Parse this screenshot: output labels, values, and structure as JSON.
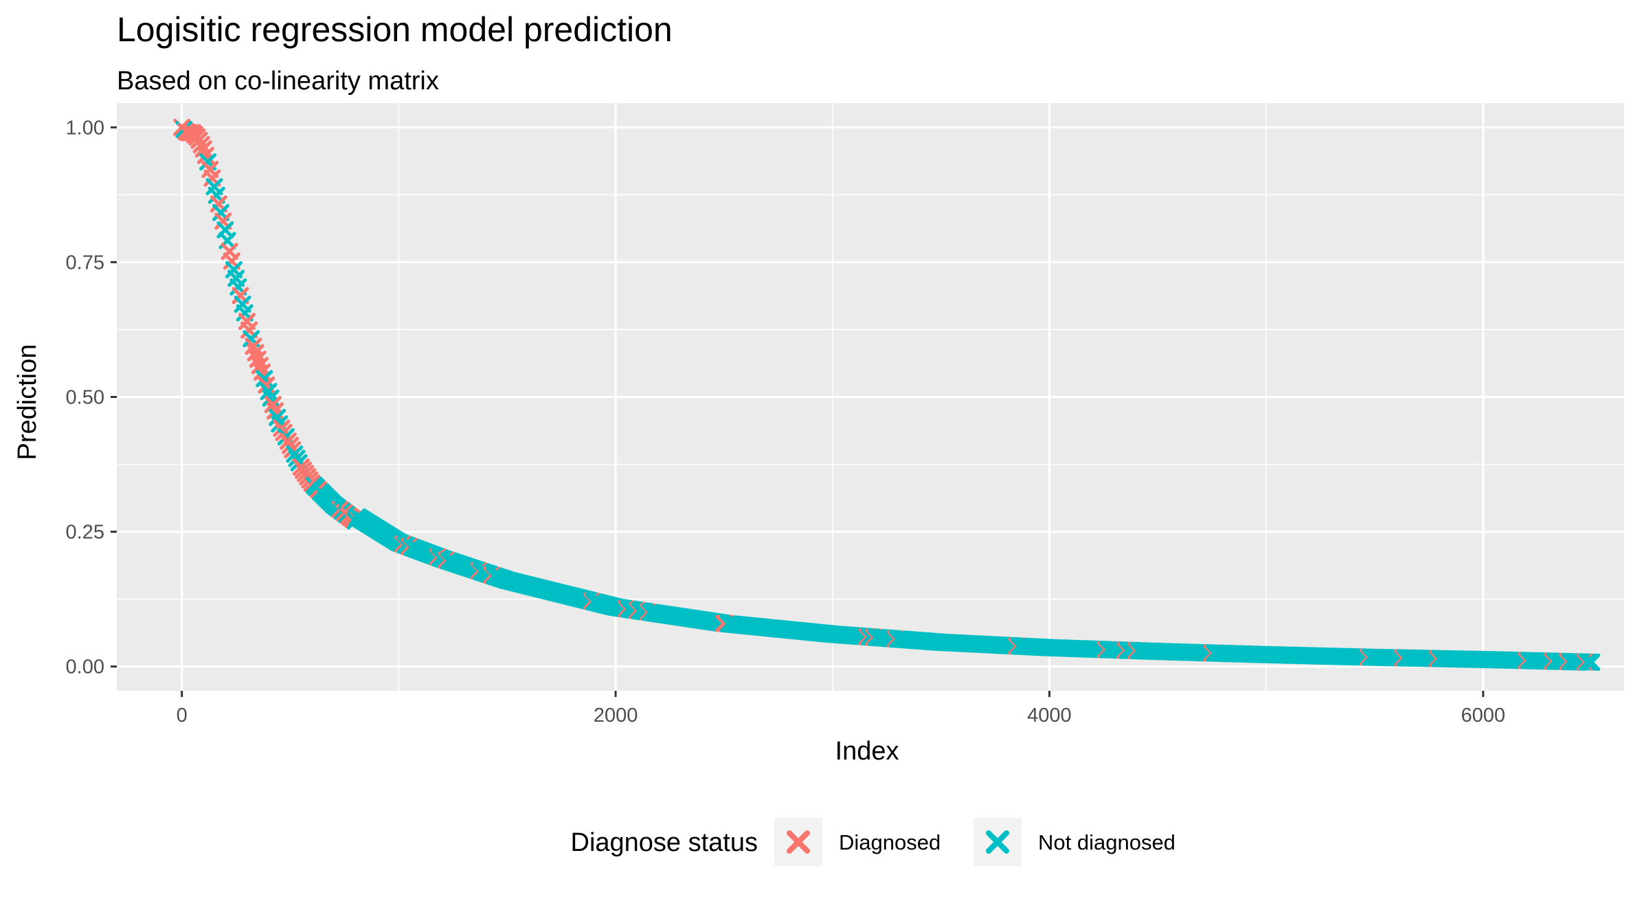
{
  "chart_data": {
    "type": "scatter",
    "title": "Logisitic regression model prediction",
    "subtitle": "Based on co-linearity matrix",
    "xlabel": "Index",
    "ylabel": "Prediction",
    "xlim": [
      -300,
      6650
    ],
    "ylim": [
      -0.045,
      1.045
    ],
    "x_ticks": [
      0,
      2000,
      4000,
      6000
    ],
    "x_tick_labels": [
      "0",
      "2000",
      "4000",
      "6000"
    ],
    "y_ticks": [
      0,
      0.25,
      0.5,
      0.75,
      1.0
    ],
    "y_tick_labels": [
      "0.00",
      "0.25",
      "0.50",
      "0.75",
      "1.00"
    ],
    "grid": true,
    "marker": "x",
    "legend_placement": "bottom",
    "legend": {
      "title": "Diagnose status",
      "entries": [
        {
          "label": "Diagnosed",
          "color": "#F8766D"
        },
        {
          "label": "Not diagnosed",
          "color": "#00BFC4"
        }
      ]
    },
    "n_points": 6500,
    "series": [
      {
        "name": "Diagnosed",
        "color": "#F8766D",
        "x": [
          0,
          25,
          50,
          75,
          100,
          125,
          150,
          175,
          200,
          225,
          250,
          275,
          300,
          325,
          350,
          375,
          400,
          425,
          450,
          500,
          550,
          600,
          650,
          700,
          800
        ],
        "y": [
          1.0,
          0.99,
          0.99,
          0.98,
          0.96,
          0.93,
          0.89,
          0.85,
          0.81,
          0.76,
          0.72,
          0.68,
          0.64,
          0.6,
          0.57,
          0.54,
          0.51,
          0.48,
          0.45,
          0.41,
          0.37,
          0.34,
          0.32,
          0.3,
          0.27
        ]
      },
      {
        "name": "Not diagnosed",
        "color": "#00BFC4",
        "x": [
          100,
          200,
          300,
          400,
          500,
          600,
          800,
          1000,
          1200,
          1500,
          1800,
          2000,
          2500,
          3000,
          3500,
          4000,
          4500,
          5000,
          5500,
          6000,
          6500
        ],
        "y": [
          0.96,
          0.81,
          0.64,
          0.51,
          0.43,
          0.36,
          0.28,
          0.23,
          0.2,
          0.16,
          0.13,
          0.11,
          0.08,
          0.06,
          0.045,
          0.035,
          0.028,
          0.022,
          0.017,
          0.013,
          0.008
        ]
      }
    ]
  }
}
